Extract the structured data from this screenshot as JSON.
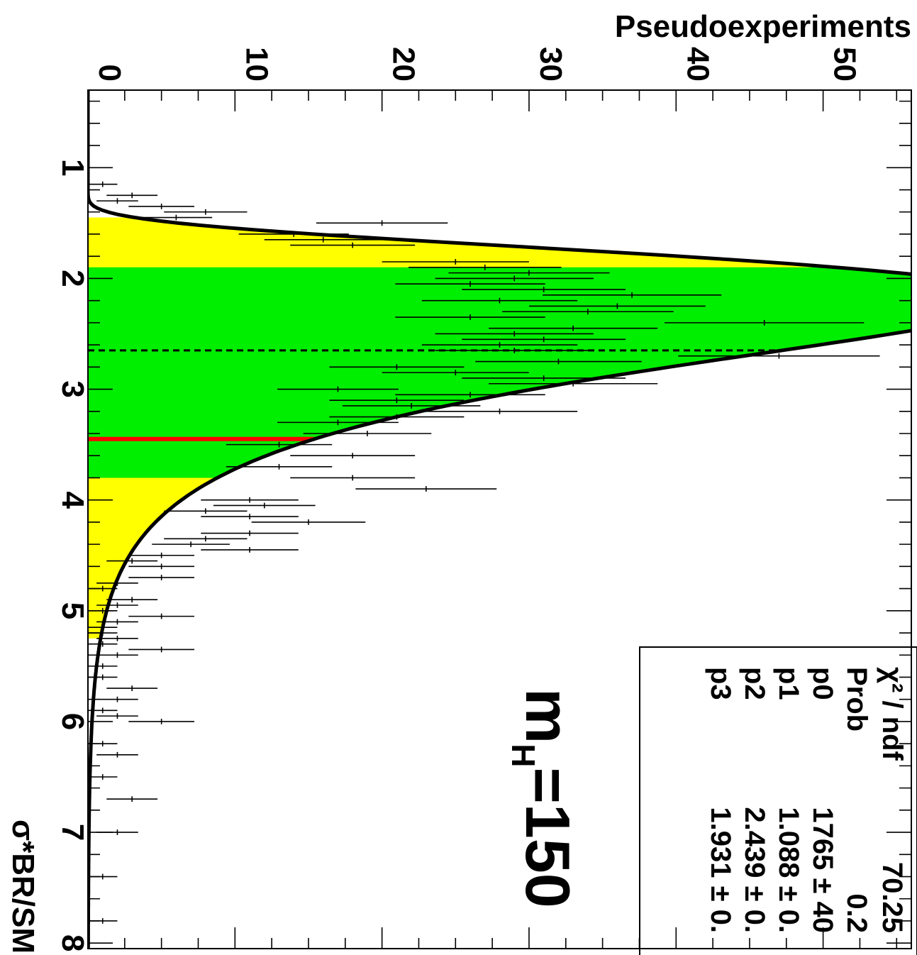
{
  "chart_data": {
    "type": "histogram",
    "orientation": "rotated-90-clockwise",
    "xlabel": "σ*BR/SM",
    "ylabel": "Pseudoexperiments",
    "xlim": [
      0.3,
      8.05
    ],
    "ylim": [
      0,
      56
    ],
    "x_ticks": [
      "1",
      "2",
      "3",
      "4",
      "5",
      "6",
      "7",
      "8"
    ],
    "y_ticks": [
      "0",
      "10",
      "20",
      "30",
      "40",
      "50"
    ],
    "annotation": {
      "prefix": "m",
      "sub": "H",
      "value": "=150"
    },
    "band_colors": {
      "one_sigma": "#00ee00",
      "two_sigma": "#ffff00",
      "median": "#ff0000",
      "fit": "#000000"
    },
    "bands": {
      "two_sigma": [
        1.45,
        5.25
      ],
      "one_sigma": [
        1.9,
        3.8
      ]
    },
    "observed_limit": 3.45,
    "expected_median": 2.65,
    "fit_params": {
      "p0": 1765,
      "p1": 1.088,
      "p2": 2.439,
      "p3": 1.931
    },
    "stats_box": {
      "rows": [
        {
          "label": "χ² / ndf",
          "value": "70.25"
        },
        {
          "label": "Prob",
          "value": "0.2"
        },
        {
          "label": "p0",
          "value": "1765 ± 40"
        },
        {
          "label": "p1",
          "value": "1.088 ± 0."
        },
        {
          "label": "p2",
          "value": "2.439 ± 0."
        },
        {
          "label": "p3",
          "value": "1.931 ± 0."
        }
      ]
    },
    "bin_width": 0.05,
    "points": [
      [
        1.05,
        0
      ],
      [
        1.15,
        1
      ],
      [
        1.25,
        3
      ],
      [
        1.3,
        2
      ],
      [
        1.35,
        5
      ],
      [
        1.4,
        8
      ],
      [
        1.45,
        6
      ],
      [
        1.5,
        20
      ],
      [
        1.6,
        14
      ],
      [
        1.65,
        16
      ],
      [
        1.7,
        18
      ],
      [
        1.85,
        25
      ],
      [
        1.9,
        27
      ],
      [
        1.95,
        30
      ],
      [
        2.0,
        29
      ],
      [
        2.05,
        26
      ],
      [
        2.1,
        31
      ],
      [
        2.15,
        37
      ],
      [
        2.2,
        28
      ],
      [
        2.25,
        36
      ],
      [
        2.3,
        34
      ],
      [
        2.35,
        26
      ],
      [
        2.4,
        46
      ],
      [
        2.45,
        33
      ],
      [
        2.5,
        29
      ],
      [
        2.55,
        31
      ],
      [
        2.6,
        28
      ],
      [
        2.65,
        29
      ],
      [
        2.7,
        47
      ],
      [
        2.75,
        32
      ],
      [
        2.8,
        21
      ],
      [
        2.85,
        25
      ],
      [
        2.9,
        31
      ],
      [
        2.95,
        33
      ],
      [
        3.0,
        17
      ],
      [
        3.05,
        26
      ],
      [
        3.1,
        21
      ],
      [
        3.15,
        22
      ],
      [
        3.2,
        28
      ],
      [
        3.25,
        21
      ],
      [
        3.3,
        17
      ],
      [
        3.4,
        19
      ],
      [
        3.5,
        13
      ],
      [
        3.6,
        18
      ],
      [
        3.7,
        13
      ],
      [
        3.8,
        18
      ],
      [
        3.9,
        23
      ],
      [
        4.0,
        11
      ],
      [
        4.05,
        12
      ],
      [
        4.1,
        8
      ],
      [
        4.15,
        11
      ],
      [
        4.2,
        15
      ],
      [
        4.3,
        11
      ],
      [
        4.35,
        8
      ],
      [
        4.4,
        7
      ],
      [
        4.45,
        11
      ],
      [
        4.5,
        5
      ],
      [
        4.55,
        3
      ],
      [
        4.6,
        5
      ],
      [
        4.7,
        5
      ],
      [
        4.75,
        2
      ],
      [
        4.8,
        1
      ],
      [
        4.9,
        3
      ],
      [
        4.95,
        2
      ],
      [
        5.0,
        1
      ],
      [
        5.05,
        5
      ],
      [
        5.1,
        2
      ],
      [
        5.15,
        1
      ],
      [
        5.2,
        1
      ],
      [
        5.25,
        2
      ],
      [
        5.3,
        1
      ],
      [
        5.35,
        5
      ],
      [
        5.4,
        2
      ],
      [
        5.5,
        1
      ],
      [
        5.6,
        1
      ],
      [
        5.7,
        3
      ],
      [
        5.8,
        2
      ],
      [
        5.9,
        1
      ],
      [
        5.95,
        2
      ],
      [
        6.0,
        5
      ],
      [
        6.1,
        0
      ],
      [
        6.2,
        1
      ],
      [
        6.3,
        2
      ],
      [
        6.5,
        1
      ],
      [
        6.7,
        3
      ],
      [
        7.0,
        2
      ],
      [
        7.1,
        0
      ],
      [
        7.4,
        1
      ],
      [
        7.6,
        0
      ],
      [
        7.8,
        1
      ]
    ]
  }
}
